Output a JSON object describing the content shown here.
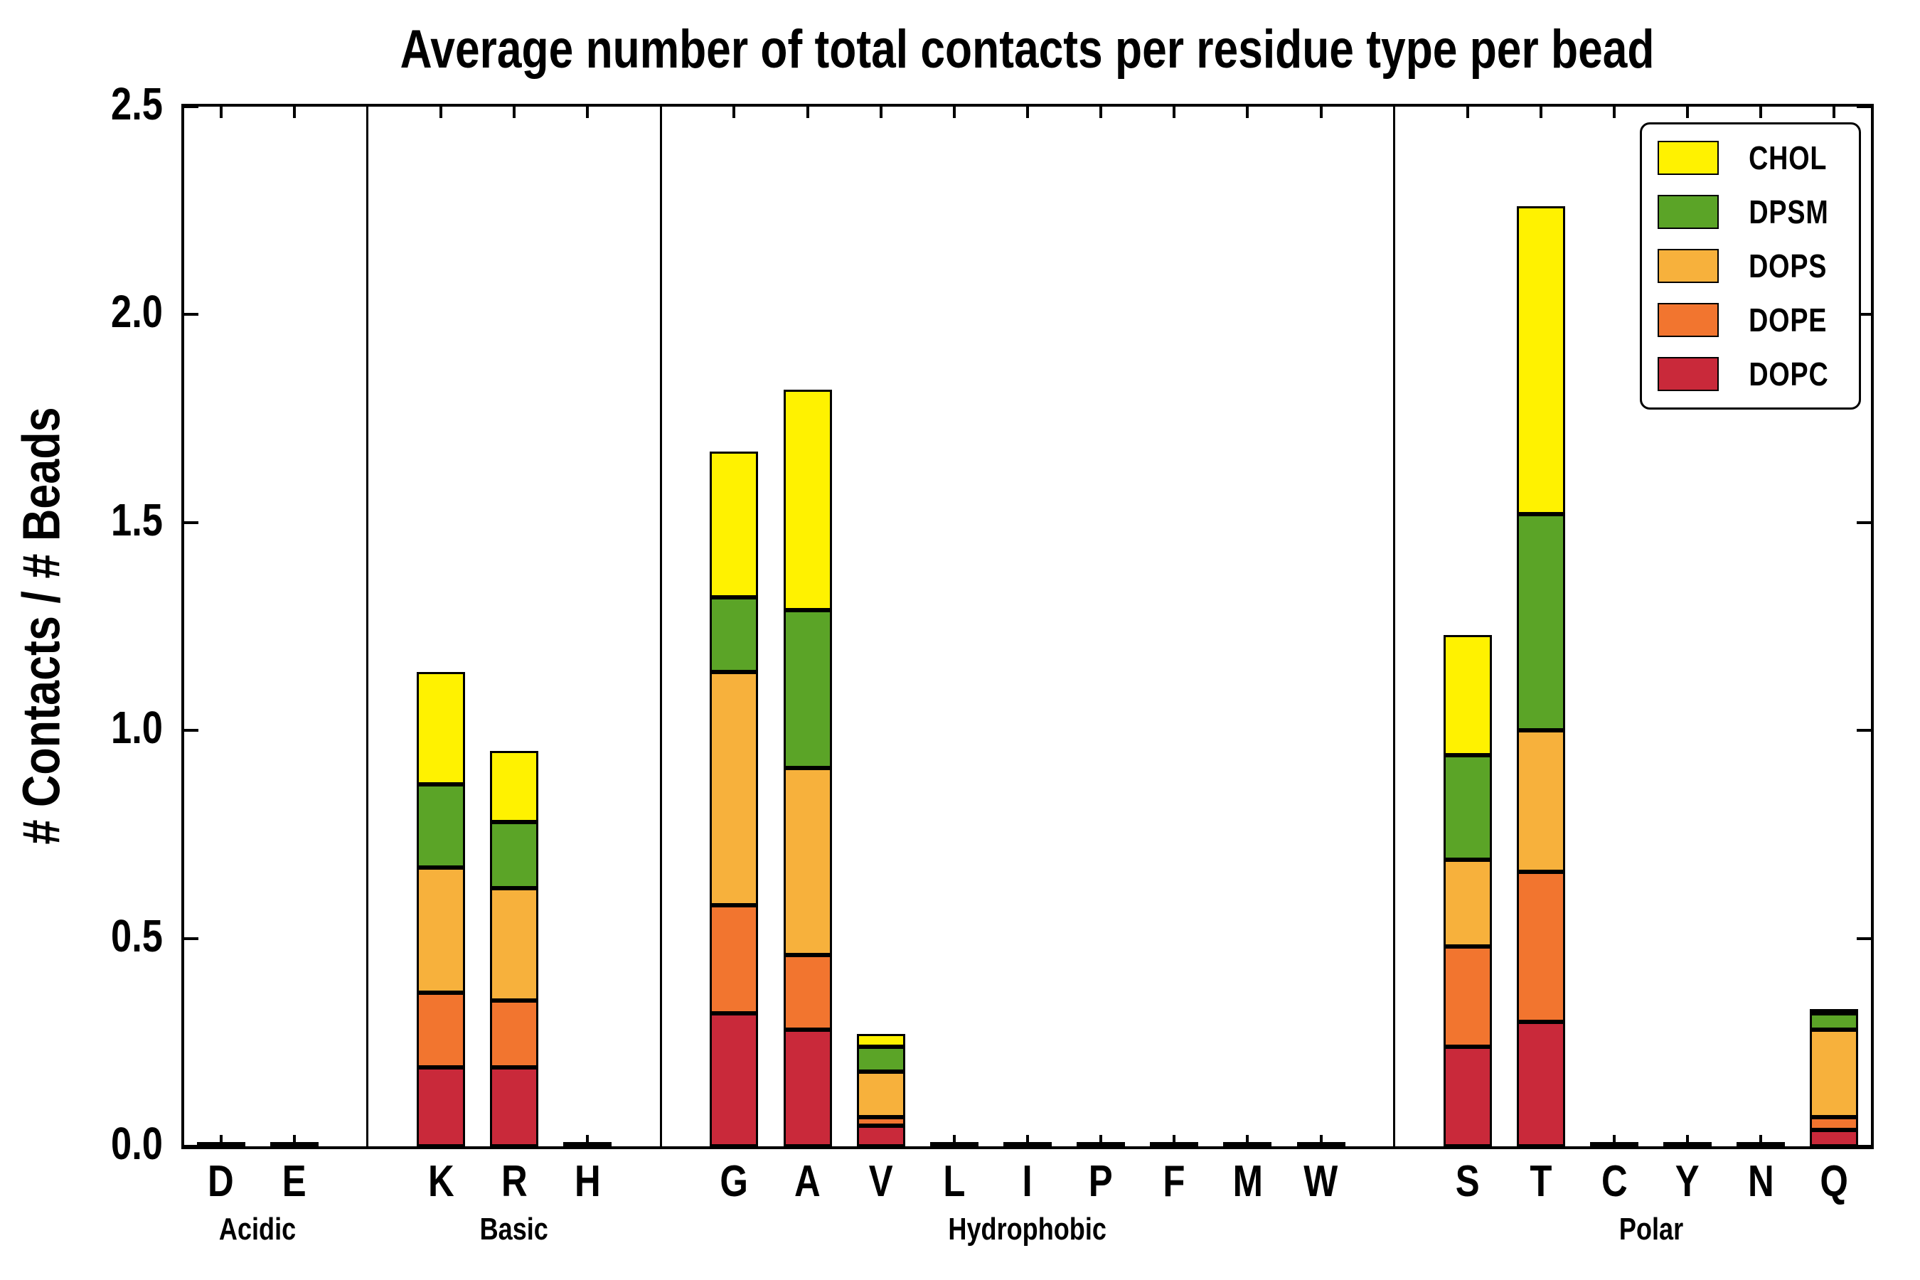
{
  "chart_data": {
    "type": "bar",
    "stacked": true,
    "title": "Average number of total contacts per residue type per bead",
    "ylabel": "# Contacts / # Beads",
    "ylim": [
      0,
      2.5
    ],
    "yticks": [
      "0.0",
      "0.5",
      "1.0",
      "1.5",
      "2.0",
      "2.5"
    ],
    "grid": false,
    "legend_position": "upper right",
    "legend_order": [
      "CHOL",
      "DPSM",
      "DOPS",
      "DOPE",
      "DOPC"
    ],
    "groups": [
      {
        "label": "Acidic",
        "categories": [
          "D",
          "E"
        ]
      },
      {
        "label": "Basic",
        "categories": [
          "K",
          "R",
          "H"
        ]
      },
      {
        "label": "Hydrophobic",
        "categories": [
          "G",
          "A",
          "V",
          "L",
          "I",
          "P",
          "F",
          "M",
          "W"
        ]
      },
      {
        "label": "Polar",
        "categories": [
          "S",
          "T",
          "C",
          "Y",
          "N",
          "Q"
        ]
      }
    ],
    "categories": [
      "D",
      "E",
      "K",
      "R",
      "H",
      "G",
      "A",
      "V",
      "L",
      "I",
      "P",
      "F",
      "M",
      "W",
      "S",
      "T",
      "C",
      "Y",
      "N",
      "Q"
    ],
    "series": [
      {
        "name": "DOPC",
        "color": "#c9293a",
        "values": [
          0.005,
          0.005,
          0.19,
          0.19,
          0.005,
          0.32,
          0.28,
          0.05,
          0.005,
          0.005,
          0.005,
          0.005,
          0.005,
          0.005,
          0.24,
          0.3,
          0.005,
          0.005,
          0.005,
          0.04
        ]
      },
      {
        "name": "DOPE",
        "color": "#f2752f",
        "values": [
          0,
          0,
          0.18,
          0.16,
          0,
          0.26,
          0.18,
          0.02,
          0,
          0,
          0,
          0,
          0,
          0,
          0.24,
          0.36,
          0,
          0,
          0,
          0.03
        ]
      },
      {
        "name": "DOPS",
        "color": "#f7b13c",
        "values": [
          0,
          0,
          0.3,
          0.27,
          0,
          0.56,
          0.45,
          0.11,
          0,
          0,
          0,
          0,
          0,
          0,
          0.21,
          0.34,
          0,
          0,
          0,
          0.21
        ]
      },
      {
        "name": "DPSM",
        "color": "#5ba427",
        "values": [
          0,
          0,
          0.2,
          0.16,
          0,
          0.18,
          0.38,
          0.06,
          0,
          0,
          0,
          0,
          0,
          0,
          0.25,
          0.52,
          0,
          0,
          0,
          0.04
        ]
      },
      {
        "name": "CHOL",
        "color": "#fff200",
        "values": [
          0,
          0,
          0.27,
          0.17,
          0,
          0.35,
          0.53,
          0.03,
          0,
          0,
          0,
          0,
          0,
          0,
          0.29,
          0.74,
          0,
          0,
          0,
          0.01
        ]
      }
    ]
  }
}
